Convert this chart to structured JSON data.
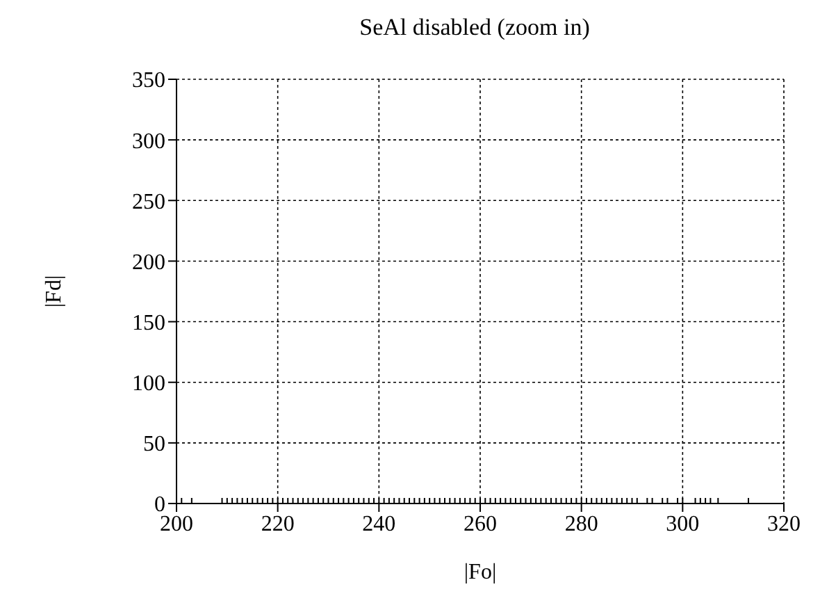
{
  "chart_data": {
    "type": "scatter",
    "title": "SeAl disabled (zoom in)",
    "xlabel": "|Fo|",
    "ylabel": "|Fd|",
    "x": [
      201,
      203,
      209,
      210,
      211,
      212,
      213,
      214,
      215,
      216,
      217,
      218,
      219,
      220,
      221,
      222,
      223,
      224,
      225,
      226,
      227,
      228,
      229,
      230,
      231,
      232,
      233,
      234,
      235,
      236,
      237,
      238,
      239,
      240,
      241,
      242,
      243,
      244,
      245,
      246,
      247,
      248,
      249,
      250,
      251,
      252,
      253,
      254,
      255,
      256,
      257,
      258,
      259,
      260,
      261,
      262,
      263,
      264,
      265,
      266,
      267,
      268,
      269,
      270,
      271,
      272,
      273,
      274,
      275,
      276,
      277,
      278,
      279,
      280,
      281,
      282,
      283,
      284,
      285,
      286,
      287,
      288,
      289,
      290,
      291,
      293,
      294,
      296,
      297,
      299,
      300,
      302.5,
      303.5,
      304.5,
      305.5,
      307,
      313
    ],
    "values": [
      0,
      0,
      0,
      0,
      0,
      0,
      0,
      0,
      0,
      0,
      0,
      0,
      0,
      0,
      0,
      0,
      0,
      0,
      0,
      0,
      0,
      0,
      0,
      0,
      0,
      0,
      0,
      0,
      0,
      0,
      0,
      0,
      0,
      0,
      0,
      0,
      0,
      0,
      0,
      0,
      0,
      0,
      0,
      0,
      0,
      0,
      0,
      0,
      0,
      0,
      0,
      0,
      0,
      0,
      0,
      0,
      0,
      0,
      0,
      0,
      0,
      0,
      0,
      0,
      0,
      0,
      0,
      0,
      0,
      0,
      0,
      0,
      0,
      0,
      0,
      0,
      0,
      0,
      0,
      0,
      0,
      0,
      0,
      0,
      0,
      0,
      0,
      0,
      0,
      0,
      0,
      0,
      0,
      0,
      0,
      0,
      0
    ],
    "color": "#000000",
    "marker": "cross",
    "xlim": [
      200,
      320
    ],
    "xticks": [
      200,
      220,
      240,
      260,
      280,
      300,
      320
    ],
    "ylim": [
      0,
      350
    ],
    "yticks": [
      0,
      50,
      100,
      150,
      200,
      250,
      300,
      350
    ],
    "grid": true
  }
}
